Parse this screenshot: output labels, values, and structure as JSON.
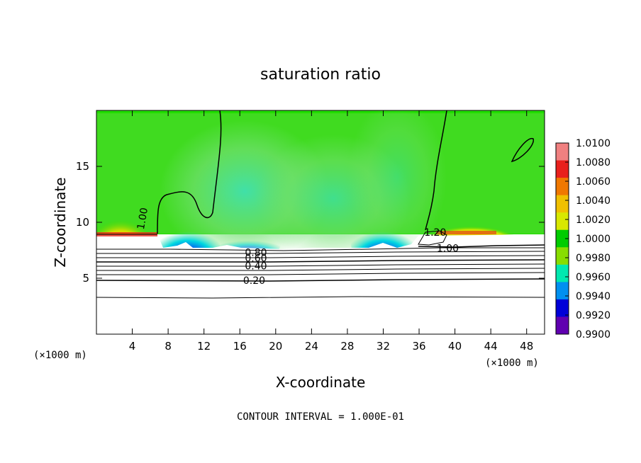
{
  "chart_data": {
    "type": "heatmap",
    "title": "saturation ratio",
    "xlabel": "X-coordinate",
    "ylabel": "Z-coordinate",
    "x_unit": "(×1000 m)",
    "z_unit": "(×1000 m)",
    "xlim": [
      0,
      50
    ],
    "ylim": [
      0,
      20
    ],
    "x_ticks": [
      "4",
      "8",
      "12",
      "16",
      "20",
      "24",
      "28",
      "32",
      "36",
      "40",
      "44",
      "48"
    ],
    "y_ticks": [
      "5",
      "10",
      "15"
    ],
    "footer": "CONTOUR INTERVAL = 1.000E-01",
    "colorbar": {
      "levels": [
        "1.0100",
        "1.0080",
        "1.0060",
        "1.0040",
        "1.0020",
        "1.0000",
        "0.9980",
        "0.9960",
        "0.9940",
        "0.9920",
        "0.9900"
      ],
      "colors": [
        "#f08080",
        "#e8201c",
        "#f07800",
        "#f0c000",
        "#d8e800",
        "#00cc00",
        "#88dd00",
        "#00e8b0",
        "#0090f0",
        "#0000d8",
        "#6000b0"
      ]
    },
    "contour_labels": [
      {
        "text": "1.00",
        "x": 5.5,
        "z": 10.6
      },
      {
        "text": "1.20",
        "x": 37.8,
        "z": 9.1
      },
      {
        "text": "1.00",
        "x": 39.2,
        "z": 7.7
      },
      {
        "text": "0.80",
        "x": 17.8,
        "z": 7.3
      },
      {
        "text": "0.60",
        "x": 17.8,
        "z": 6.8
      },
      {
        "text": "0.40",
        "x": 17.8,
        "z": 6.1
      },
      {
        "text": "0.20",
        "x": 17.6,
        "z": 4.8
      }
    ]
  }
}
